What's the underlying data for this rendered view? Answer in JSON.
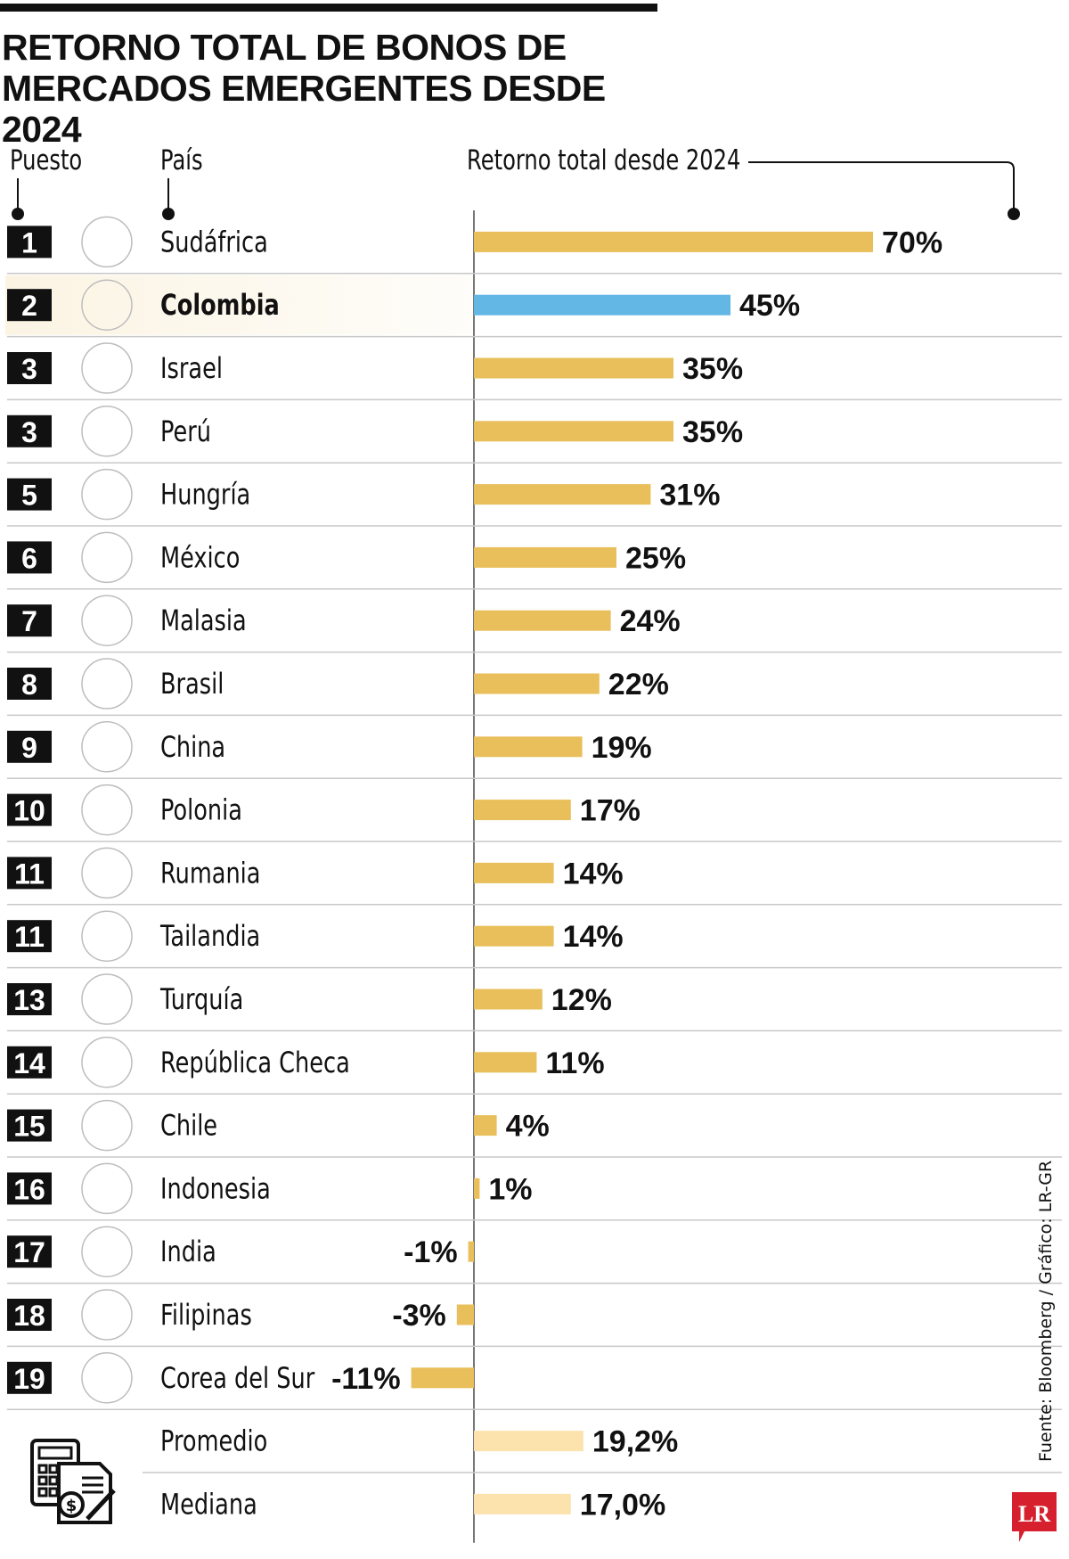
{
  "title": "RETORNO TOTAL DE BONOS DE MERCADOS EMERGENTES DESDE 2024",
  "headers": {
    "rank": "Puesto",
    "country": "País",
    "value": "Retorno total desde 2024"
  },
  "source": "Fuente: Bloomberg / Gráfico: LR-GR",
  "logo_text": "LR",
  "colors": {
    "bar": "#E8BF5A",
    "highlight_bar": "#62B7E5",
    "summary_bar": "#FCE3AE",
    "highlight_row": "#FBF4E3",
    "rank_box": "#111111",
    "logo": "#D6202E"
  },
  "chart_data": {
    "type": "bar",
    "orientation": "horizontal",
    "xlim": [
      -11,
      70
    ],
    "rows": [
      {
        "rank": "1",
        "country": "Sudáfrica",
        "value": 70,
        "label": "70%",
        "flag": "south-africa"
      },
      {
        "rank": "2",
        "country": "Colombia",
        "value": 45,
        "label": "45%",
        "flag": "colombia",
        "highlight": true
      },
      {
        "rank": "3",
        "country": "Israel",
        "value": 35,
        "label": "35%",
        "flag": "israel"
      },
      {
        "rank": "3",
        "country": "Perú",
        "value": 35,
        "label": "35%",
        "flag": "peru"
      },
      {
        "rank": "5",
        "country": "Hungría",
        "value": 31,
        "label": "31%",
        "flag": "hungary"
      },
      {
        "rank": "6",
        "country": "México",
        "value": 25,
        "label": "25%",
        "flag": "mexico"
      },
      {
        "rank": "7",
        "country": "Malasia",
        "value": 24,
        "label": "24%",
        "flag": "malaysia"
      },
      {
        "rank": "8",
        "country": "Brasil",
        "value": 22,
        "label": "22%",
        "flag": "brazil"
      },
      {
        "rank": "9",
        "country": "China",
        "value": 19,
        "label": "19%",
        "flag": "china"
      },
      {
        "rank": "10",
        "country": "Polonia",
        "value": 17,
        "label": "17%",
        "flag": "poland"
      },
      {
        "rank": "11",
        "country": "Rumania",
        "value": 14,
        "label": "14%",
        "flag": "romania"
      },
      {
        "rank": "11",
        "country": "Tailandia",
        "value": 14,
        "label": "14%",
        "flag": "thailand"
      },
      {
        "rank": "13",
        "country": "Turquía",
        "value": 12,
        "label": "12%",
        "flag": "turkey"
      },
      {
        "rank": "14",
        "country": "República Checa",
        "value": 11,
        "label": "11%",
        "flag": "czech-republic"
      },
      {
        "rank": "15",
        "country": "Chile",
        "value": 4,
        "label": "4%",
        "flag": "chile"
      },
      {
        "rank": "16",
        "country": "Indonesia",
        "value": 1,
        "label": "1%",
        "flag": "indonesia"
      },
      {
        "rank": "17",
        "country": "India",
        "value": -1,
        "label": "-1%",
        "flag": "india"
      },
      {
        "rank": "18",
        "country": "Filipinas",
        "value": -3,
        "label": "-3%",
        "flag": "philippines"
      },
      {
        "rank": "19",
        "country": "Corea del Sur",
        "value": -11,
        "label": "-11%",
        "flag": "south-korea"
      }
    ],
    "summary": [
      {
        "name": "Promedio",
        "value": 19.2,
        "label": "19,2%"
      },
      {
        "name": "Mediana",
        "value": 17.0,
        "label": "17,0%"
      }
    ]
  }
}
